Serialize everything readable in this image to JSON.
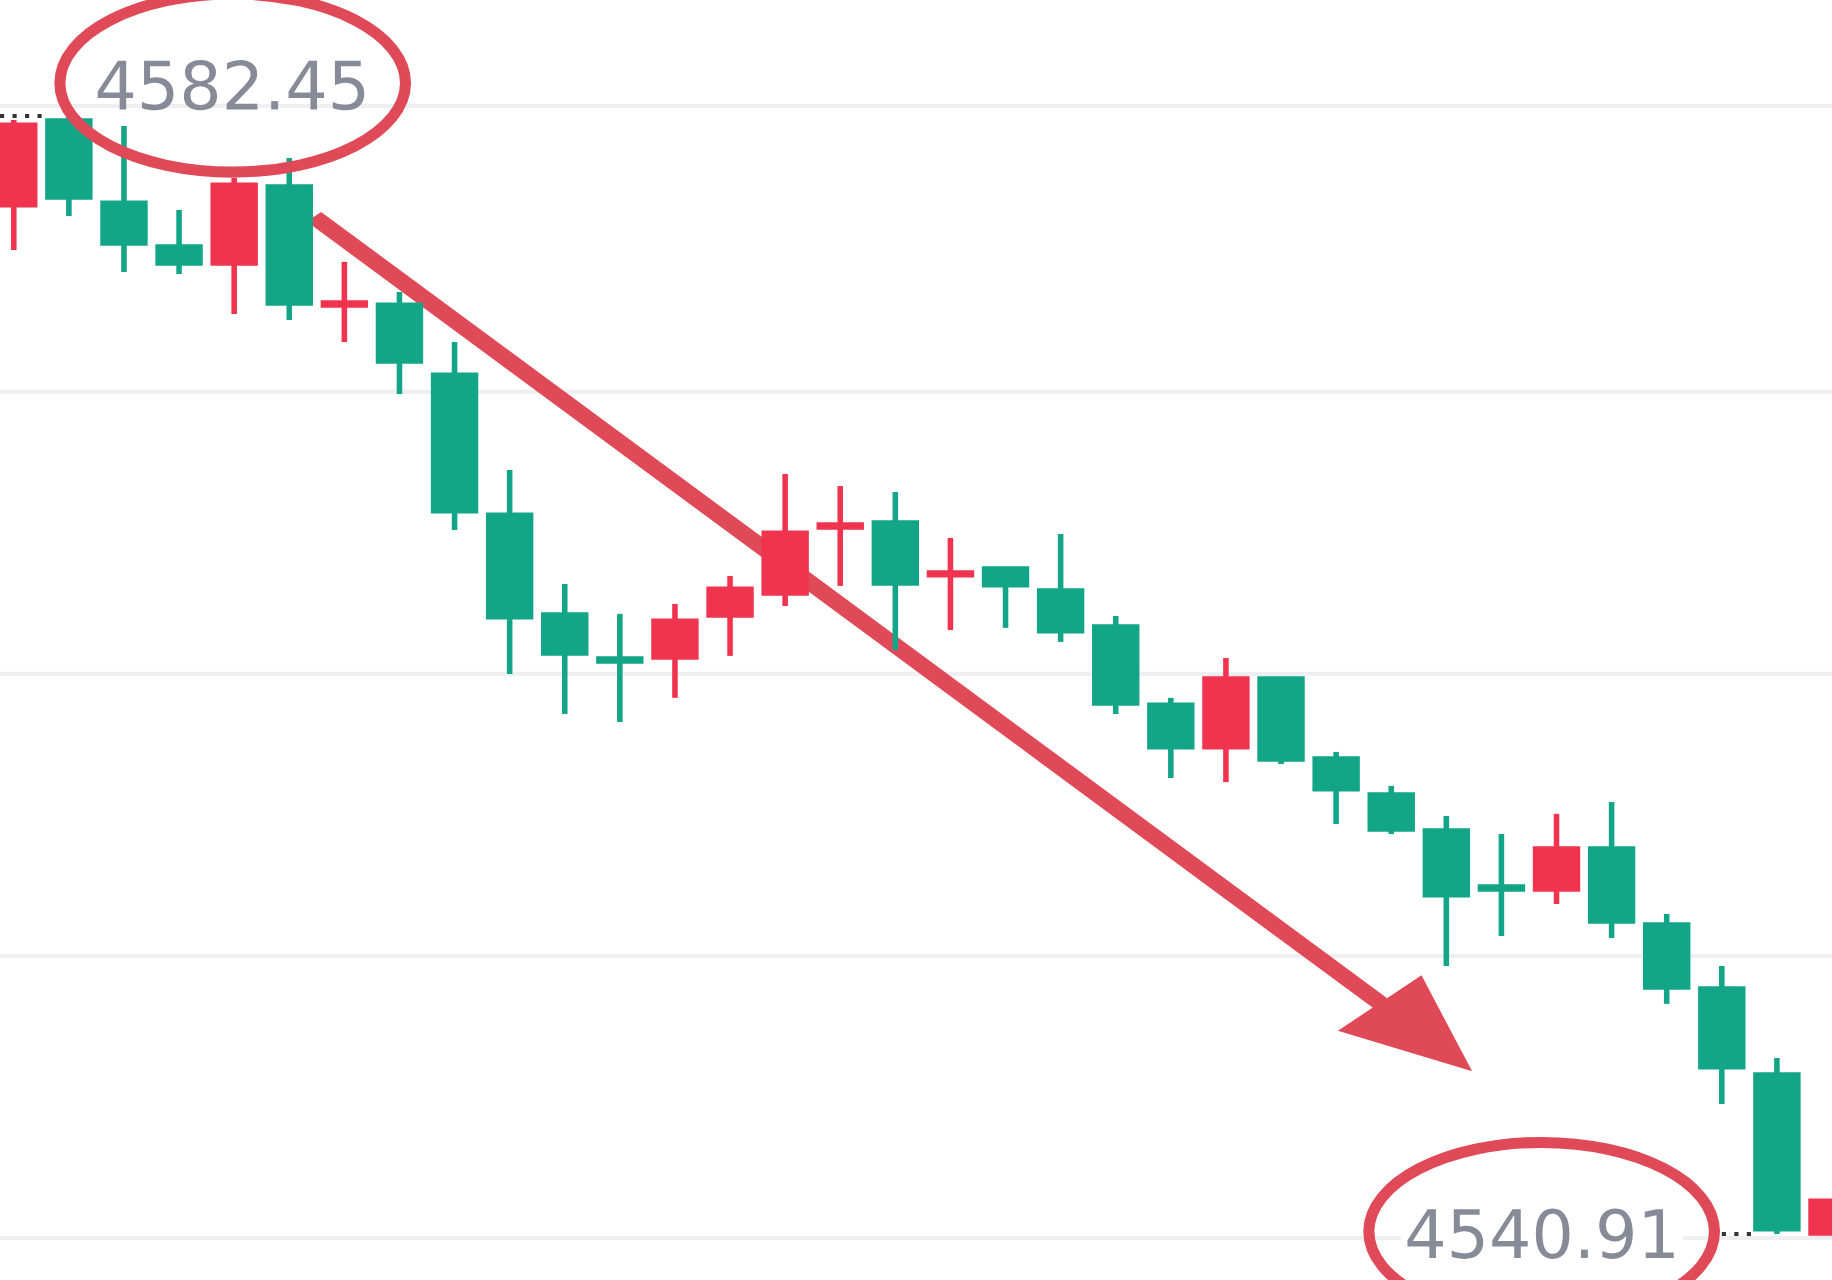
{
  "chart_data": {
    "type": "candlestick",
    "categories": [
      null,
      null,
      null,
      null,
      null,
      null,
      null,
      null,
      null,
      null,
      null,
      null,
      null,
      null,
      null,
      null,
      null,
      null,
      null,
      null,
      null,
      null,
      null,
      null,
      null,
      null,
      null,
      null,
      null,
      null,
      null,
      null,
      null,
      null
    ],
    "ohlc": [
      [
        4579.11,
        4582.3,
        4577.47,
        4582.15
      ],
      [
        4582.3,
        4582.45,
        4578.73,
        4579.4
      ],
      [
        4579.25,
        4582.08,
        4576.65,
        4577.69
      ],
      [
        4577.62,
        4578.96,
        4576.58,
        4576.95
      ],
      [
        4576.95,
        4580.15,
        4575.09,
        4579.92
      ],
      [
        4579.85,
        4580.89,
        4574.87,
        4575.46
      ],
      [
        4575.39,
        4577.03,
        4574.05,
        4575.54
      ],
      [
        4575.46,
        4575.91,
        4572.12,
        4573.31
      ],
      [
        4572.86,
        4574.05,
        4567.07,
        4567.74
      ],
      [
        4567.66,
        4569.3,
        4561.72,
        4563.8
      ],
      [
        4563.95,
        4565.06,
        4560.23,
        4562.46
      ],
      [
        4562.31,
        4563.95,
        4559.93,
        4562.16
      ],
      [
        4562.31,
        4564.32,
        4560.83,
        4563.72
      ],
      [
        4563.87,
        4565.36,
        4562.39,
        4564.91
      ],
      [
        4564.69,
        4569.15,
        4564.24,
        4566.99
      ],
      [
        4567.14,
        4568.7,
        4564.99,
        4567.29
      ],
      [
        4567.37,
        4568.48,
        4562.61,
        4565.06
      ],
      [
        4565.36,
        4566.77,
        4563.35,
        4565.51
      ],
      [
        4565.66,
        4565.66,
        4563.43,
        4564.99
      ],
      [
        4564.84,
        4566.92,
        4562.91,
        4563.28
      ],
      [
        4563.5,
        4563.87,
        4560.23,
        4560.6
      ],
      [
        4560.6,
        4560.83,
        4557.85,
        4558.97
      ],
      [
        4558.97,
        4562.31,
        4557.7,
        4561.57
      ],
      [
        4561.57,
        4561.57,
        4558.37,
        4558.52
      ],
      [
        4558.6,
        4558.82,
        4556.14,
        4557.41
      ],
      [
        4557.26,
        4557.56,
        4555.77,
        4555.92
      ],
      [
        4555.92,
        4556.44,
        4550.87,
        4553.47
      ],
      [
        4553.84,
        4555.77,
        4551.98,
        4553.69
      ],
      [
        4553.69,
        4556.52,
        4553.17,
        4555.25
      ],
      [
        4555.25,
        4556.96,
        4551.91,
        4552.5
      ],
      [
        4552.43,
        4552.8,
        4549.46,
        4550.05
      ],
      [
        4550.05,
        4550.87,
        4545.74,
        4547.08
      ],
      [
        4546.86,
        4547.45,
        4540.91,
        4541.06
      ],
      [
        4540.91,
        4542.17,
        4540.91,
        4542.17
      ]
    ],
    "colors": [
      "#f0344f",
      "#12a587",
      "#12a587",
      "#12a587",
      "#f0344f",
      "#12a587",
      "#f0344f",
      "#12a587",
      "#12a587",
      "#12a587",
      "#12a587",
      "#12a587",
      "#f0344f",
      "#f0344f",
      "#f0344f",
      "#f0344f",
      "#12a587",
      "#f0344f",
      "#12a587",
      "#12a587",
      "#12a587",
      "#12a587",
      "#f0344f",
      "#12a587",
      "#12a587",
      "#12a587",
      "#12a587",
      "#12a587",
      "#f0344f",
      "#12a587",
      "#12a587",
      "#12a587",
      "#12a587",
      "#f0344f"
    ],
    "ylim": [
      4539.2,
      4586.76
    ],
    "yticks": [
      {
        "value": 4582.82,
        "label": null
      },
      {
        "value": 4572.2,
        "label": null
      },
      {
        "value": 4561.72,
        "label": null
      },
      {
        "value": 4551.24,
        "label": null
      },
      {
        "value": 4540.76,
        "label": null
      }
    ],
    "grid": "y",
    "annotations": [
      "4582.45",
      "4540.91"
    ]
  }
}
